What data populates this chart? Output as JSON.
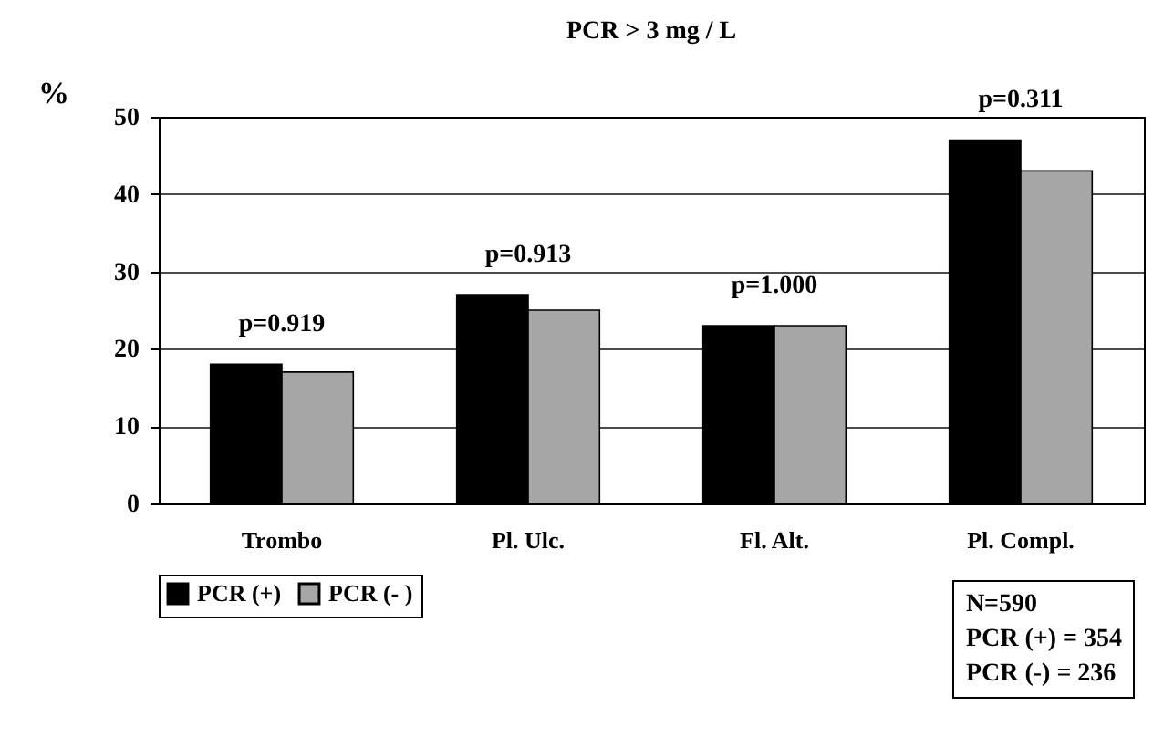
{
  "chart_data": {
    "type": "bar",
    "title": "PCR > 3 mg / L",
    "ylabel": "%",
    "categories": [
      "Trombo",
      "Pl. Ulc.",
      "Fl. Alt.",
      "Pl. Compl."
    ],
    "series": [
      {
        "name": "PCR (+)",
        "color": "#000000",
        "values": [
          18,
          27,
          23,
          47
        ]
      },
      {
        "name": "PCR (- )",
        "color": "#a6a6a6",
        "values": [
          17,
          25,
          23,
          43
        ]
      }
    ],
    "ylim": [
      0,
      50
    ],
    "yticks": [
      0,
      10,
      20,
      30,
      40,
      50
    ],
    "grid": "y",
    "legend": "bottom",
    "annotations": [
      {
        "text": "p=0.919",
        "x": "Trombo",
        "y": 18
      },
      {
        "text": "p=0.913",
        "x": "Pl. Ulc.",
        "y": 27
      },
      {
        "text": "p=1.000",
        "x": "Fl. Alt.",
        "y": 23
      },
      {
        "text": "p=0.311",
        "x": "Pl. Compl.",
        "y": 47
      },
      "N=590",
      "PCR (+) = 354",
      "PCR (-) = 236"
    ]
  }
}
